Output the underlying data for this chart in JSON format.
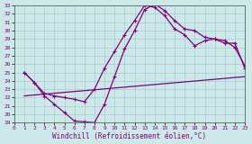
{
  "xlabel": "Windchill (Refroidissement éolien,°C)",
  "xlim": [
    0,
    23
  ],
  "ylim": [
    19,
    33
  ],
  "xticks": [
    0,
    1,
    2,
    3,
    4,
    5,
    6,
    7,
    8,
    9,
    10,
    11,
    12,
    13,
    14,
    15,
    16,
    17,
    18,
    19,
    20,
    21,
    22,
    23
  ],
  "yticks": [
    19,
    20,
    21,
    22,
    23,
    24,
    25,
    26,
    27,
    28,
    29,
    30,
    31,
    32,
    33
  ],
  "bg_color": "#cce8e8",
  "line_color": "#800080",
  "grid_color": "#aacccc",
  "line1_x": [
    1,
    2,
    3,
    4,
    5,
    6,
    7,
    8,
    9,
    10,
    11,
    12,
    13,
    14,
    15,
    16,
    17,
    18,
    19,
    20,
    21,
    22,
    23
  ],
  "line1_y": [
    25.0,
    23.8,
    22.2,
    21.2,
    20.2,
    19.2,
    19.1,
    19.0,
    21.2,
    24.5,
    27.8,
    30.0,
    32.5,
    33.2,
    32.4,
    31.2,
    30.2,
    30.0,
    29.2,
    29.0,
    28.8,
    28.0,
    25.8
  ],
  "line2_x": [
    1,
    2,
    3,
    4,
    5,
    6,
    7,
    8,
    9,
    10,
    11,
    12,
    13,
    14,
    15,
    16,
    17,
    18,
    19,
    20,
    21,
    22,
    23
  ],
  "line2_y": [
    25.0,
    23.8,
    22.5,
    22.2,
    22.0,
    21.8,
    21.5,
    23.0,
    25.5,
    27.5,
    29.5,
    31.2,
    33.0,
    32.8,
    31.8,
    30.2,
    29.5,
    28.2,
    28.8,
    29.0,
    28.5,
    28.5,
    25.5
  ],
  "line3_x": [
    1,
    23
  ],
  "line3_y": [
    22.2,
    24.5
  ],
  "marker": "+",
  "markersize": 3,
  "linewidth": 0.9
}
